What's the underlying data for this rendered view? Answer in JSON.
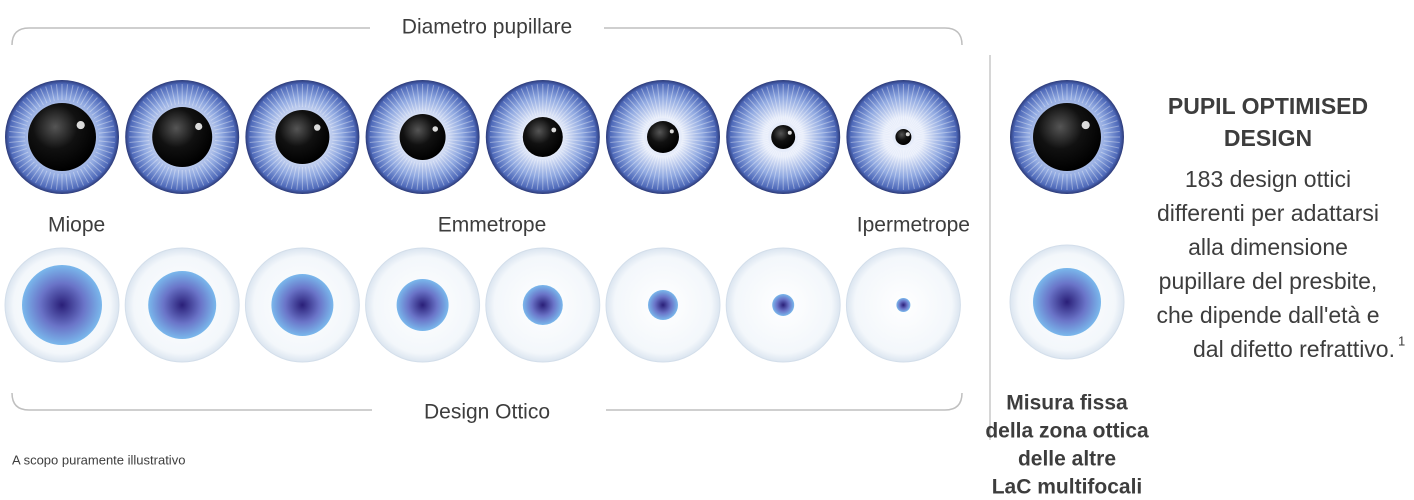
{
  "top_label": "Diametro pupillare",
  "row_labels": [
    "Miope",
    "Emmetrope",
    "Ipermetrope"
  ],
  "bottom_label": "Design Ottico",
  "note": "A scopo puramente illustrativo",
  "side": {
    "title": [
      "PUPIL OPTIMISED",
      "DESIGN"
    ],
    "description": [
      "183 design ottici",
      "differenti per adattarsi",
      "alla dimensione",
      "pupillare del presbite,",
      "che dipende dall'età e",
      "dal difetto refrattivo."
    ],
    "footnote": "1"
  },
  "comparison": {
    "caption": [
      "Misura fissa",
      "della zona ottica",
      "delle altre",
      "LaC multifocali"
    ]
  }
}
